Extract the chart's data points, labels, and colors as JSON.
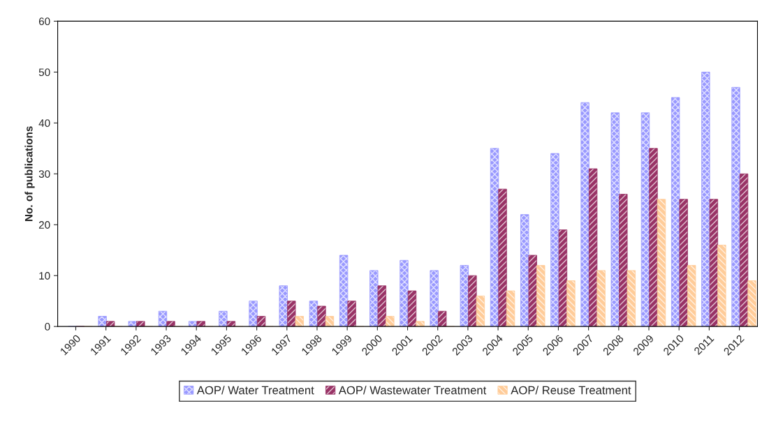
{
  "chart_data": {
    "type": "bar",
    "ylabel": "No. of publications",
    "categories": [
      "1990",
      "1991",
      "1992",
      "1993",
      "1994",
      "1995",
      "1996",
      "1997",
      "1998",
      "1999",
      "2000",
      "2001",
      "2002",
      "2003",
      "2004",
      "2005",
      "2006",
      "2007",
      "2008",
      "2009",
      "2010",
      "2011",
      "2012"
    ],
    "series": [
      {
        "name": "AOP/ Water Treatment",
        "color": "#9999ff",
        "values": [
          0,
          2,
          1,
          3,
          1,
          3,
          5,
          8,
          5,
          14,
          11,
          13,
          11,
          12,
          35,
          22,
          34,
          44,
          42,
          42,
          45,
          50,
          47
        ]
      },
      {
        "name": "AOP/ Wastewater Treatment",
        "color": "#993366",
        "values": [
          0,
          1,
          1,
          1,
          1,
          1,
          2,
          5,
          4,
          5,
          8,
          7,
          3,
          10,
          27,
          14,
          19,
          31,
          26,
          35,
          25,
          25,
          30
        ]
      },
      {
        "name": "AOP/ Reuse Treatment",
        "color": "#ffcc99",
        "values": [
          0,
          0,
          0,
          0,
          0,
          0,
          0,
          2,
          2,
          0,
          2,
          1,
          0,
          6,
          7,
          12,
          9,
          11,
          11,
          25,
          12,
          16,
          9
        ]
      }
    ],
    "ylim": [
      0,
      60
    ],
    "yticks": [
      0,
      10,
      20,
      30,
      40,
      50,
      60
    ],
    "grid": false,
    "legend": "bottom"
  }
}
